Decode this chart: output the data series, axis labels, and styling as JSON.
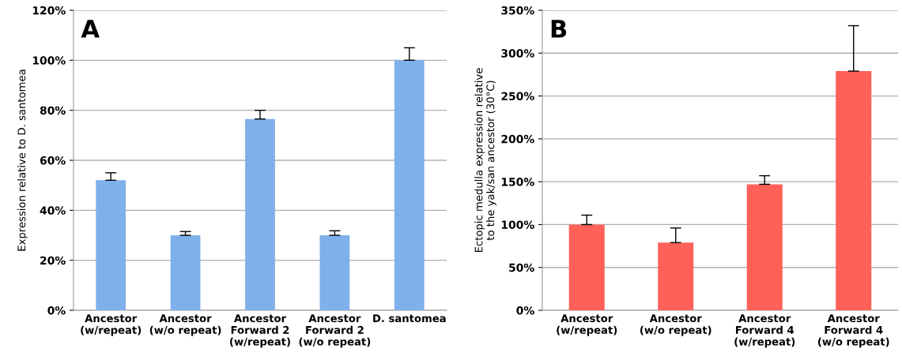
{
  "chart_data": [
    {
      "type": "bar",
      "ylabel": "Expression relative to D. santomea",
      "annotations": [
        "A"
      ],
      "categories": [
        "Ancestor\n(w/repeat)",
        "Ancestor\n(w/o repeat)",
        "Ancestor\nForward 2\n(w/repeat)",
        "Ancestor\nForward 2\n(w/o repeat)",
        "D. santomea"
      ],
      "values": [
        52,
        30,
        76.5,
        30,
        100
      ],
      "color": "#7fb0ea",
      "errors": [
        [
          52,
          55
        ],
        [
          30,
          31.5
        ],
        [
          76.5,
          80
        ],
        [
          30,
          31.8
        ],
        [
          100,
          105
        ]
      ],
      "ylim": [
        0,
        120
      ],
      "yticks": [
        {
          "value": 0,
          "label": "0%"
        },
        {
          "value": 20,
          "label": "20%"
        },
        {
          "value": 40,
          "label": "40%"
        },
        {
          "value": 60,
          "label": "60%"
        },
        {
          "value": 80,
          "label": "80%"
        },
        {
          "value": 100,
          "label": "100%"
        },
        {
          "value": 120,
          "label": "120%"
        }
      ],
      "grid": "y"
    },
    {
      "type": "bar",
      "ylabel": "Ectopic medulla expression relative\nto the yak/san ancestor (30°C)",
      "annotations": [
        "B"
      ],
      "categories": [
        "Ancestor\n(w/repeat)",
        "Ancestor\n(w/o repeat)",
        "Ancestor\nForward 4\n(w/repeat)",
        "Ancestor\nForward 4\n(w/o repeat)"
      ],
      "values": [
        100,
        79,
        147,
        279
      ],
      "color": "#ff6058",
      "errors": [
        [
          100,
          111
        ],
        [
          79,
          96
        ],
        [
          147,
          157
        ],
        [
          279,
          332
        ]
      ],
      "ylim": [
        0,
        350
      ],
      "yticks": [
        {
          "value": 0,
          "label": "0%"
        },
        {
          "value": 50,
          "label": "50%"
        },
        {
          "value": 100,
          "label": "100%"
        },
        {
          "value": 150,
          "label": "150%"
        },
        {
          "value": 200,
          "label": "200%"
        },
        {
          "value": 250,
          "label": "250%"
        },
        {
          "value": 300,
          "label": "300%"
        },
        {
          "value": 350,
          "label": "350%"
        }
      ],
      "grid": "y"
    }
  ]
}
